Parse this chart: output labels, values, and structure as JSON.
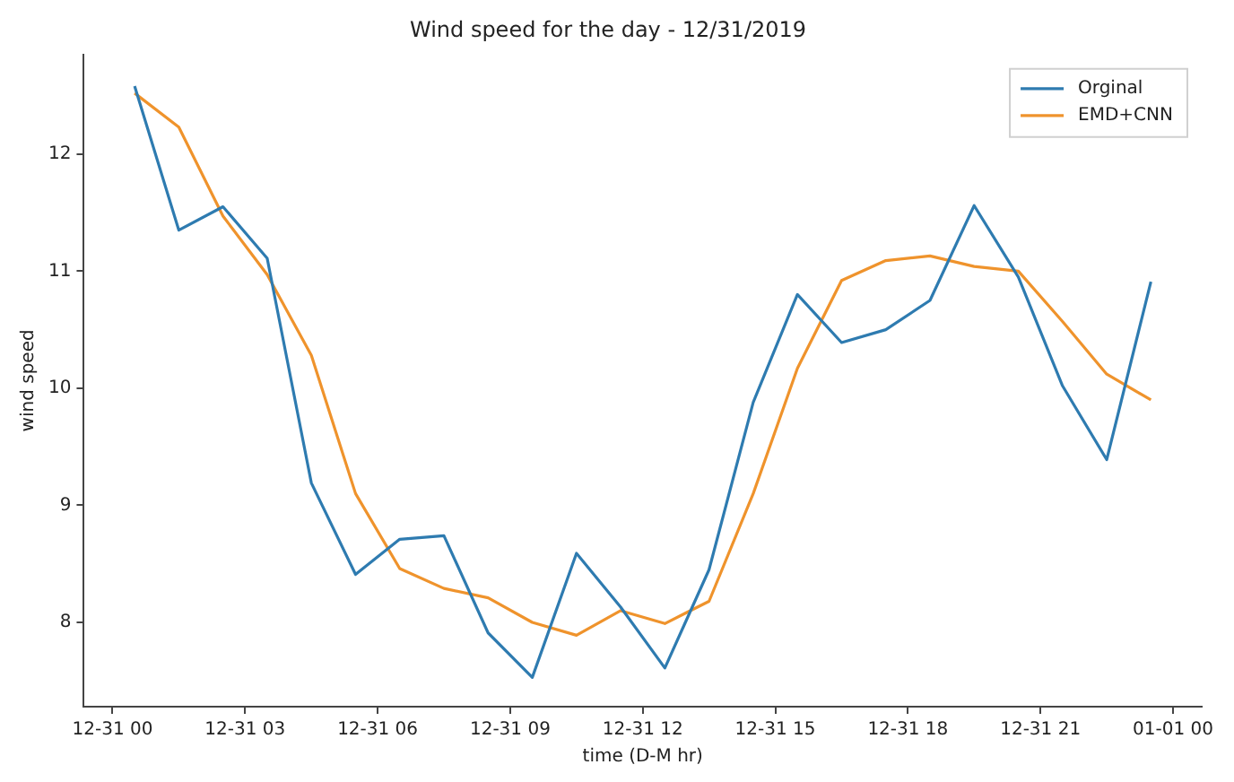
{
  "chart_data": {
    "type": "line",
    "title": "Wind speed for the day - 12/31/2019",
    "xlabel": "time (D-M hr)",
    "ylabel": "wind speed",
    "x": [
      "2019-12-31T00:30",
      "2019-12-31T01:30",
      "2019-12-31T02:30",
      "2019-12-31T03:30",
      "2019-12-31T04:30",
      "2019-12-31T05:30",
      "2019-12-31T06:30",
      "2019-12-31T07:30",
      "2019-12-31T08:30",
      "2019-12-31T09:30",
      "2019-12-31T10:30",
      "2019-12-31T11:30",
      "2019-12-31T12:30",
      "2019-12-31T13:30",
      "2019-12-31T14:30",
      "2019-12-31T15:30",
      "2019-12-31T16:30",
      "2019-12-31T17:30",
      "2019-12-31T18:30",
      "2019-12-31T19:30",
      "2019-12-31T20:30",
      "2019-12-31T21:30",
      "2019-12-31T22:30",
      "2019-12-31T23:30"
    ],
    "series": [
      {
        "name": "Orginal",
        "color": "#2e7bb0",
        "values": [
          12.58,
          11.35,
          11.55,
          11.11,
          9.19,
          8.41,
          8.71,
          8.74,
          7.91,
          7.53,
          8.59,
          8.13,
          7.61,
          8.45,
          9.88,
          10.8,
          10.39,
          10.5,
          10.75,
          11.56,
          10.95,
          10.02,
          9.39,
          10.91
        ]
      },
      {
        "name": "EMD+CNN",
        "color": "#ef932c",
        "values": [
          12.52,
          12.23,
          11.47,
          10.97,
          10.28,
          9.1,
          8.46,
          8.29,
          8.21,
          8.0,
          7.89,
          8.1,
          7.99,
          8.18,
          9.1,
          10.17,
          10.92,
          11.09,
          11.13,
          11.04,
          11.0,
          10.57,
          10.12,
          9.9
        ]
      }
    ],
    "xlim": [
      "2019-12-30T23:21",
      "2020-01-01T00:39"
    ],
    "xticks": [
      {
        "value": "2019-12-31T00:00",
        "label": "12-31 00"
      },
      {
        "value": "2019-12-31T03:00",
        "label": "12-31 03"
      },
      {
        "value": "2019-12-31T06:00",
        "label": "12-31 06"
      },
      {
        "value": "2019-12-31T09:00",
        "label": "12-31 09"
      },
      {
        "value": "2019-12-31T12:00",
        "label": "12-31 12"
      },
      {
        "value": "2019-12-31T15:00",
        "label": "12-31 15"
      },
      {
        "value": "2019-12-31T18:00",
        "label": "12-31 18"
      },
      {
        "value": "2019-12-31T21:00",
        "label": "12-31 21"
      },
      {
        "value": "2020-01-01T00:00",
        "label": "01-01 00"
      }
    ],
    "ylim": [
      7.28,
      12.85
    ],
    "yticks": [
      8,
      9,
      10,
      11,
      12
    ],
    "grid": false,
    "legend": "top right",
    "marker": "none",
    "line_style": "solid"
  }
}
